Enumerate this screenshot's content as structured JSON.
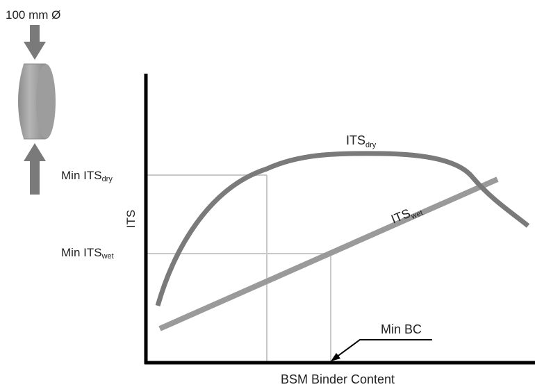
{
  "specimen": {
    "diameter_label": "100 mm Ø"
  },
  "axes": {
    "x_label": "BSM Binder Content",
    "y_label": "ITS"
  },
  "curves": {
    "dry": {
      "label_main": "ITS",
      "label_sub": "dry",
      "color": "#7a7a7a"
    },
    "wet": {
      "label_main": "ITS",
      "label_sub": "wet",
      "color": "#9a9a9a"
    }
  },
  "thresholds": {
    "min_dry": {
      "label_main": "Min ITS",
      "label_sub": "dry"
    },
    "min_wet": {
      "label_main": "Min ITS",
      "label_sub": "wet"
    },
    "min_bc": {
      "label": "Min BC"
    }
  },
  "colors": {
    "axis": "#000000",
    "guide": "#c8c8c8",
    "arrow": "#7a7a7a",
    "specimen_face": "#a9a9a9",
    "specimen_side": "#8a8a8a"
  }
}
